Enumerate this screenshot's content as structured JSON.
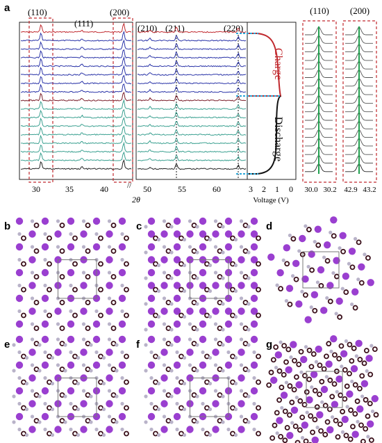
{
  "figure": {
    "panel_a": {
      "label": "a",
      "peaks_left": [
        "(110)",
        "(111)",
        "(200)"
      ],
      "peaks_right": [
        "(210)",
        "(211)",
        "(220)"
      ],
      "x_ticks_left": [
        "30",
        "35",
        "40"
      ],
      "x_ticks_right": [
        "50",
        "55",
        "60"
      ],
      "x_label": "2θ",
      "voltage_ticks": [
        "3",
        "2",
        "1",
        "0"
      ],
      "voltage_axis_label": "Voltage (V)",
      "charge_label": "Charge",
      "discharge_label": "Discharge",
      "zoom_110": {
        "title": "(110)",
        "ticks": [
          "30.0",
          "30.2"
        ]
      },
      "zoom_200": {
        "title": "(200)",
        "ticks": [
          "42.9",
          "43.2"
        ]
      },
      "trace_colors": {
        "charge": [
          "#c0282d",
          "#2a34a8"
        ],
        "transition": "#7a1e2a",
        "discharge": "#3aa090",
        "last": "#222222",
        "zoom_line": "#22a050"
      }
    },
    "structure_panels": [
      {
        "label": "b"
      },
      {
        "label": "c"
      },
      {
        "label": "d"
      },
      {
        "label": "e"
      },
      {
        "label": "f"
      },
      {
        "label": "g"
      }
    ],
    "atom_colors": {
      "large": "#9a3fd0",
      "small_dark": "#3a0f1a",
      "small_light": "#b9b3c9",
      "cell_line": "#777777"
    }
  }
}
